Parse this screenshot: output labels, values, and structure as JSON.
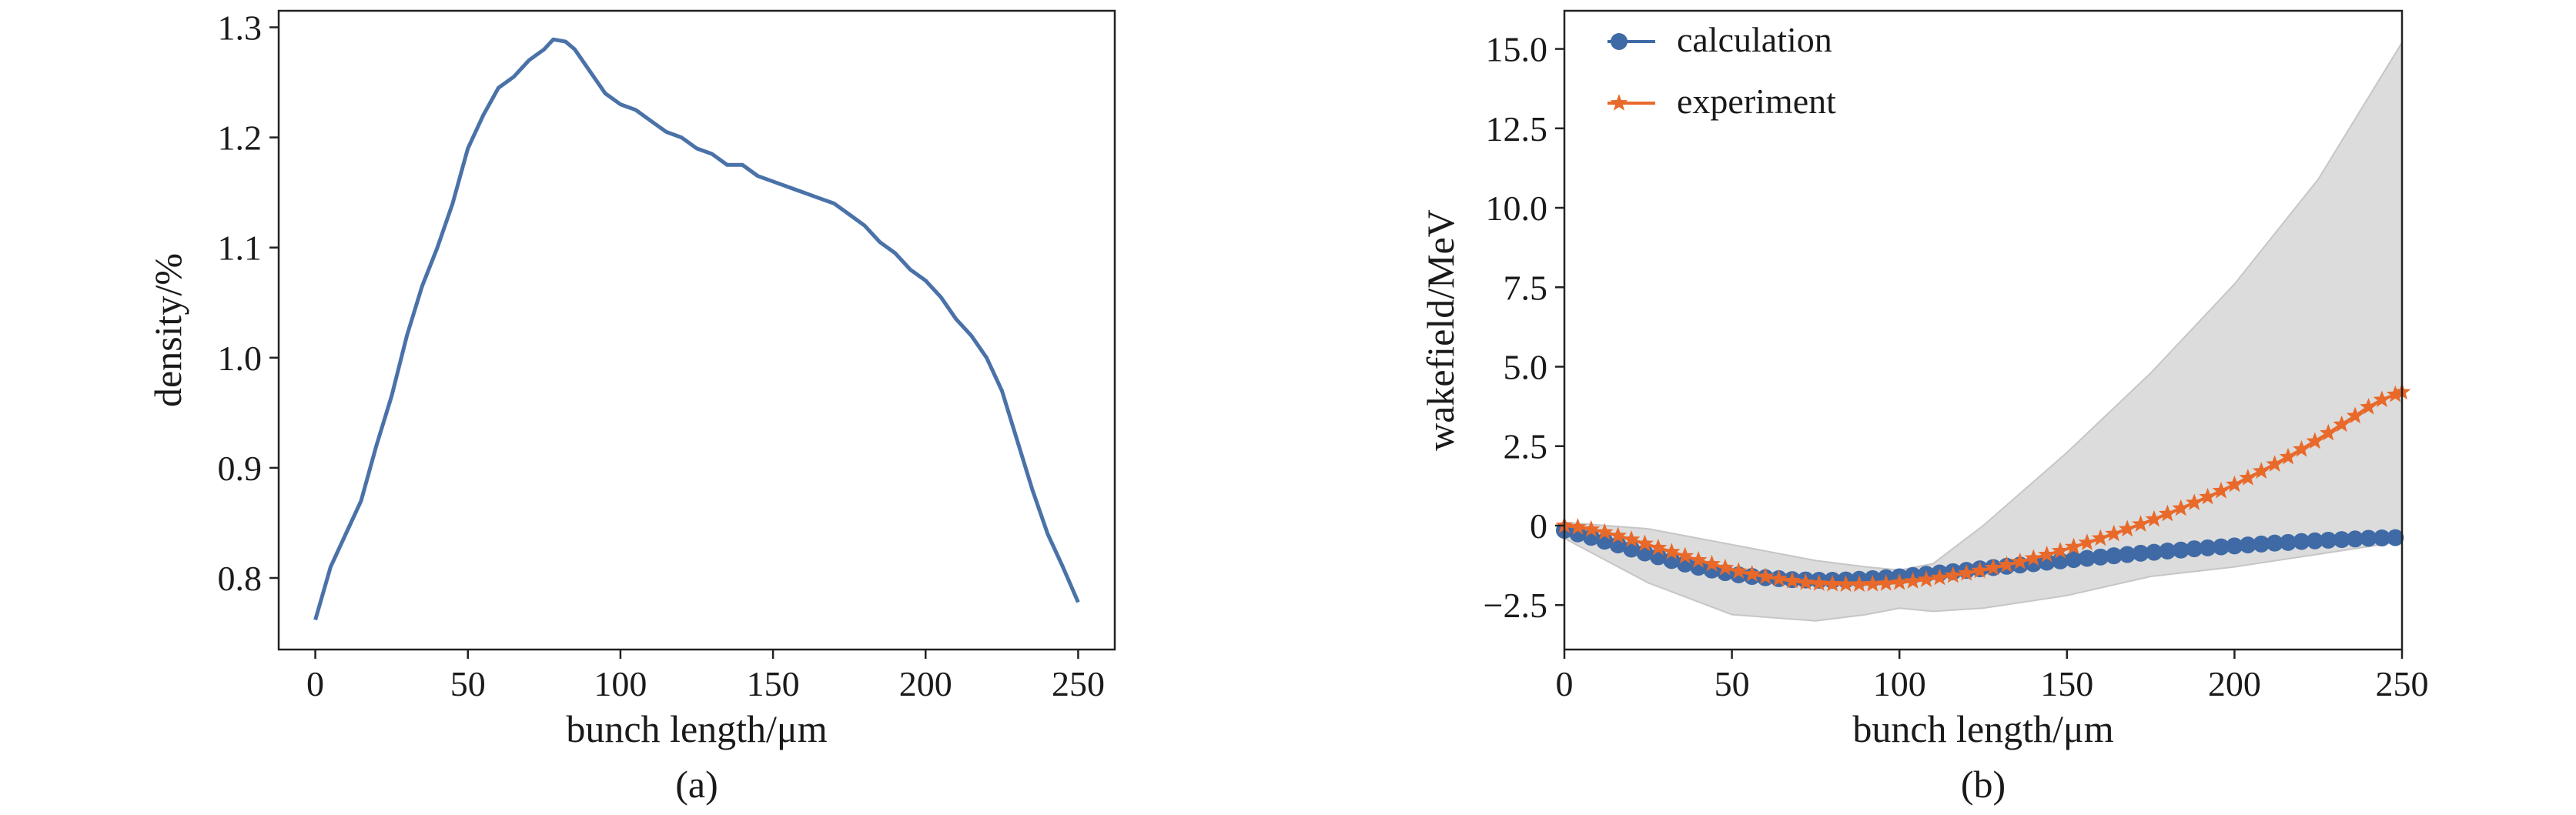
{
  "chart_data": [
    {
      "type": "line",
      "caption": "(a)",
      "xlabel": "bunch length/μm",
      "ylabel": "density/%",
      "xlim": [
        -12,
        262
      ],
      "ylim": [
        0.735,
        1.315
      ],
      "xticks": [
        0,
        50,
        100,
        150,
        200,
        250
      ],
      "xtick_labels": [
        "0",
        "50",
        "100",
        "150",
        "200",
        "250"
      ],
      "yticks": [
        0.8,
        0.9,
        1.0,
        1.1,
        1.2,
        1.3
      ],
      "ytick_labels": [
        "0.8",
        "0.9",
        "1.0",
        "1.1",
        "1.2",
        "1.3"
      ],
      "grid": false,
      "color": "#4a72a8",
      "series": [
        {
          "x": [
            0,
            5,
            10,
            15,
            20,
            25,
            30,
            35,
            40,
            45,
            50,
            55,
            60,
            65,
            70,
            75,
            78,
            82,
            85,
            90,
            95,
            100,
            105,
            110,
            115,
            120,
            125,
            130,
            135,
            140,
            145,
            150,
            155,
            160,
            165,
            170,
            175,
            180,
            185,
            190,
            195,
            200,
            205,
            210,
            215,
            220,
            225,
            230,
            235,
            240,
            245,
            250
          ],
          "y": [
            0.762,
            0.81,
            0.84,
            0.87,
            0.92,
            0.965,
            1.02,
            1.065,
            1.1,
            1.14,
            1.19,
            1.22,
            1.245,
            1.255,
            1.27,
            1.28,
            1.289,
            1.287,
            1.28,
            1.26,
            1.24,
            1.23,
            1.225,
            1.215,
            1.205,
            1.2,
            1.19,
            1.185,
            1.175,
            1.175,
            1.165,
            1.16,
            1.155,
            1.15,
            1.145,
            1.14,
            1.13,
            1.12,
            1.105,
            1.095,
            1.08,
            1.07,
            1.055,
            1.035,
            1.02,
            1.0,
            0.97,
            0.925,
            0.88,
            0.84,
            0.81,
            0.778
          ]
        }
      ]
    },
    {
      "type": "line",
      "caption": "(b)",
      "xlabel": "bunch length/μm",
      "ylabel": "wakefield/MeV",
      "xlim": [
        0,
        250
      ],
      "ylim": [
        -3.9,
        16.2
      ],
      "xticks": [
        0,
        50,
        100,
        150,
        200,
        250
      ],
      "xtick_labels": [
        "0",
        "50",
        "100",
        "150",
        "200",
        "250"
      ],
      "yticks": [
        -2.5,
        0,
        2.5,
        5.0,
        7.5,
        10.0,
        12.5,
        15.0
      ],
      "ytick_labels": [
        "−2.5",
        "0",
        "2.5",
        "5.0",
        "7.5",
        "10.0",
        "12.5",
        "15.0"
      ],
      "grid": false,
      "legend": "top-left",
      "band": {
        "color": "#dcdcdc",
        "x": [
          0,
          25,
          50,
          75,
          90,
          100,
          110,
          125,
          150,
          175,
          200,
          225,
          250
        ],
        "upper": [
          0.1,
          -0.1,
          -0.6,
          -1.1,
          -1.3,
          -1.4,
          -1.2,
          0.0,
          2.3,
          4.8,
          7.6,
          10.9,
          15.2
        ],
        "lower": [
          -0.4,
          -1.8,
          -2.8,
          -3.0,
          -2.8,
          -2.6,
          -2.7,
          -2.6,
          -2.2,
          -1.6,
          -1.3,
          -0.9,
          -0.5
        ]
      },
      "series": [
        {
          "name": "calculation",
          "color": "#3f6aa6",
          "marker": "circle",
          "x": [
            0,
            4,
            8,
            12,
            16,
            20,
            24,
            28,
            32,
            36,
            40,
            44,
            48,
            52,
            56,
            60,
            64,
            68,
            72,
            76,
            80,
            84,
            88,
            92,
            96,
            100,
            104,
            108,
            112,
            116,
            120,
            124,
            128,
            132,
            136,
            140,
            144,
            148,
            152,
            156,
            160,
            164,
            168,
            172,
            176,
            180,
            184,
            188,
            192,
            196,
            200,
            204,
            208,
            212,
            216,
            220,
            224,
            228,
            232,
            236,
            240,
            244,
            248
          ],
          "y": [
            -0.15,
            -0.26,
            -0.37,
            -0.49,
            -0.61,
            -0.74,
            -0.86,
            -0.98,
            -1.1,
            -1.21,
            -1.31,
            -1.4,
            -1.48,
            -1.55,
            -1.6,
            -1.64,
            -1.67,
            -1.7,
            -1.71,
            -1.72,
            -1.72,
            -1.71,
            -1.69,
            -1.67,
            -1.64,
            -1.61,
            -1.57,
            -1.53,
            -1.49,
            -1.45,
            -1.41,
            -1.36,
            -1.32,
            -1.28,
            -1.24,
            -1.2,
            -1.15,
            -1.11,
            -1.07,
            -1.03,
            -0.99,
            -0.95,
            -0.91,
            -0.87,
            -0.84,
            -0.8,
            -0.77,
            -0.73,
            -0.7,
            -0.67,
            -0.64,
            -0.61,
            -0.58,
            -0.55,
            -0.53,
            -0.5,
            -0.48,
            -0.46,
            -0.44,
            -0.42,
            -0.4,
            -0.39,
            -0.38
          ]
        },
        {
          "name": "experiment",
          "color": "#e8692a",
          "marker": "star",
          "x": [
            0,
            4,
            8,
            12,
            16,
            20,
            24,
            28,
            32,
            36,
            40,
            44,
            48,
            52,
            56,
            60,
            64,
            68,
            72,
            76,
            80,
            84,
            88,
            92,
            96,
            100,
            104,
            108,
            112,
            116,
            120,
            124,
            128,
            132,
            136,
            140,
            144,
            148,
            152,
            156,
            160,
            164,
            168,
            172,
            176,
            180,
            184,
            188,
            192,
            196,
            200,
            204,
            208,
            212,
            216,
            220,
            224,
            228,
            232,
            236,
            240,
            244,
            248,
            250
          ],
          "y": [
            0.0,
            -0.05,
            -0.12,
            -0.21,
            -0.32,
            -0.44,
            -0.57,
            -0.7,
            -0.83,
            -0.96,
            -1.09,
            -1.21,
            -1.33,
            -1.44,
            -1.53,
            -1.61,
            -1.68,
            -1.74,
            -1.79,
            -1.82,
            -1.84,
            -1.85,
            -1.85,
            -1.84,
            -1.82,
            -1.79,
            -1.75,
            -1.7,
            -1.64,
            -1.57,
            -1.5,
            -1.42,
            -1.33,
            -1.24,
            -1.14,
            -1.03,
            -0.92,
            -0.8,
            -0.67,
            -0.54,
            -0.4,
            -0.26,
            -0.11,
            0.04,
            0.2,
            0.37,
            0.54,
            0.72,
            0.9,
            1.09,
            1.29,
            1.5,
            1.71,
            1.93,
            2.16,
            2.4,
            2.65,
            2.91,
            3.18,
            3.45,
            3.73,
            3.96,
            4.12,
            4.2
          ]
        }
      ]
    }
  ]
}
